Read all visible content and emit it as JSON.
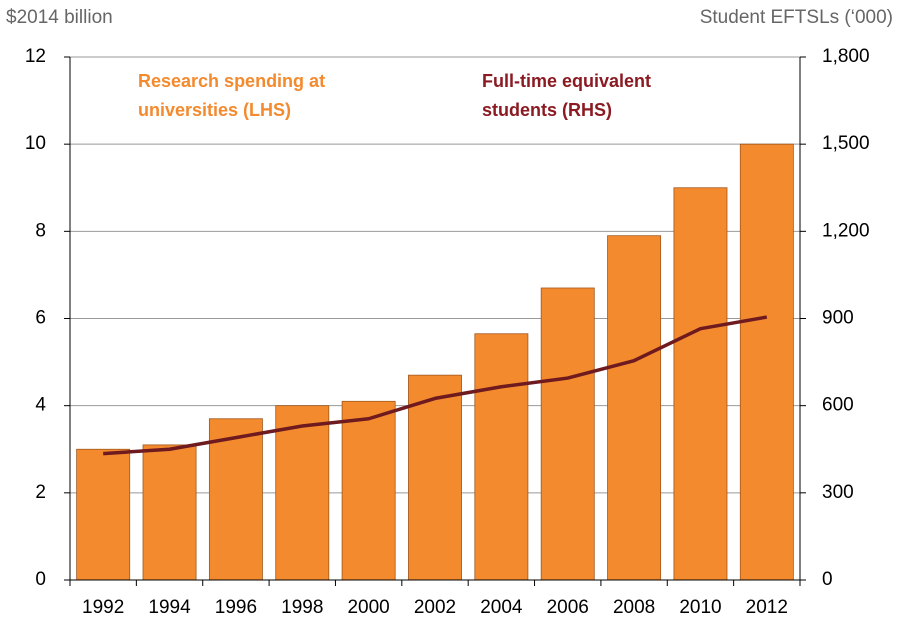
{
  "chart_data": {
    "type": "bar",
    "left_axis_title": "$2014 billion",
    "right_axis_title": "Student EFTSLs (‘000)",
    "categories": [
      "1992",
      "1994",
      "1996",
      "1998",
      "2000",
      "2002",
      "2004",
      "2006",
      "2008",
      "2010",
      "2012"
    ],
    "series": [
      {
        "name": "Research spending at universities (LHS)",
        "type": "bar",
        "color": "#f48a2e",
        "axis": "y",
        "values": [
          3.0,
          3.1,
          3.7,
          4.0,
          4.1,
          4.7,
          5.65,
          6.7,
          7.9,
          9.0,
          10.0
        ]
      },
      {
        "name": "Full-time equivalent students (RHS)",
        "type": "line",
        "color": "#6e1a1f",
        "axis": "y2",
        "values": [
          435,
          450,
          490,
          530,
          555,
          625,
          665,
          695,
          755,
          865,
          905
        ]
      }
    ],
    "annotations": [
      {
        "lines": [
          "Research spending at",
          "universities (LHS)"
        ],
        "color": "#f48a2e"
      },
      {
        "lines": [
          "Full-time equivalent",
          "students (RHS)"
        ],
        "color": "#8b1a22"
      }
    ],
    "ylim": [
      0,
      12
    ],
    "yticks": [
      0,
      2,
      4,
      6,
      8,
      10,
      12
    ],
    "y2lim": [
      0,
      1800
    ],
    "y2ticks": [
      0,
      300,
      600,
      900,
      {
        "value": 1200,
        "label": "1,200"
      },
      {
        "value": 1500,
        "label": "1,500"
      },
      {
        "value": 1800,
        "label": "1,800"
      }
    ],
    "grid": true
  }
}
